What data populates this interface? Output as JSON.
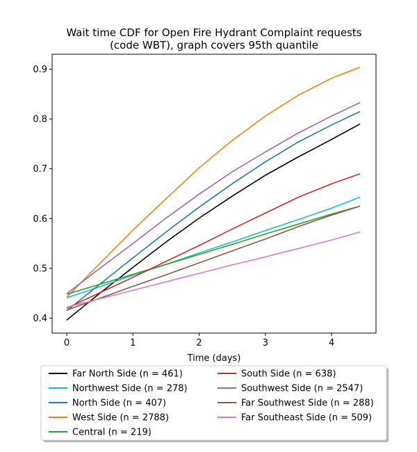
{
  "chart_data": {
    "type": "line",
    "title_line1": "Wait time CDF for Open Fire Hydrant Complaint  requests",
    "title_line2": "(code WBT), graph covers 95th quantile",
    "xlabel": "Time (days)",
    "ylabel": "",
    "xlim": [
      -0.22,
      4.67
    ],
    "ylim": [
      0.37,
      0.93
    ],
    "xticks": [
      0,
      1,
      2,
      3,
      4
    ],
    "yticks": [
      0.4,
      0.5,
      0.6,
      0.7,
      0.8,
      0.9
    ],
    "grid": false,
    "legend_placement": "below plot, two columns",
    "series": [
      {
        "name": "Far North Side (n = 461)",
        "color": "#000000",
        "x": [
          0,
          0.5,
          1,
          1.5,
          2,
          2.5,
          3,
          3.5,
          4,
          4.43
        ],
        "y": [
          0.396,
          0.45,
          0.502,
          0.553,
          0.601,
          0.645,
          0.687,
          0.724,
          0.759,
          0.79
        ]
      },
      {
        "name": "Northwest Side (n = 278)",
        "color": "#17becf",
        "x": [
          0,
          0.5,
          1,
          1.5,
          2,
          2.5,
          3,
          3.5,
          4,
          4.43
        ],
        "y": [
          0.441,
          0.463,
          0.486,
          0.508,
          0.531,
          0.553,
          0.576,
          0.598,
          0.621,
          0.643
        ]
      },
      {
        "name": "North Side (n = 407)",
        "color": "#1f77b4",
        "x": [
          0,
          0.5,
          1,
          1.5,
          2,
          2.5,
          3,
          3.5,
          4,
          4.43
        ],
        "y": [
          0.415,
          0.468,
          0.521,
          0.573,
          0.623,
          0.67,
          0.714,
          0.754,
          0.788,
          0.815
        ]
      },
      {
        "name": "West Side (n = 2788)",
        "color": "#ff7f0e",
        "x": [
          0,
          0.5,
          1,
          1.5,
          2,
          2.5,
          3,
          3.5,
          4,
          4.43
        ],
        "y": [
          0.442,
          0.51,
          0.577,
          0.64,
          0.702,
          0.757,
          0.806,
          0.848,
          0.882,
          0.904
        ]
      },
      {
        "name": "Central (n = 219)",
        "color": "#2ca02c",
        "x": [
          0,
          0.5,
          1,
          1.5,
          2,
          2.5,
          3,
          3.5,
          4,
          4.43
        ],
        "y": [
          0.448,
          0.468,
          0.488,
          0.508,
          0.528,
          0.548,
          0.569,
          0.589,
          0.609,
          0.625
        ]
      },
      {
        "name": "South Side (n = 638)",
        "color": "#d62728",
        "x": [
          0,
          0.5,
          1,
          1.5,
          2,
          2.5,
          3,
          3.5,
          4,
          4.43
        ],
        "y": [
          0.42,
          0.451,
          0.482,
          0.514,
          0.546,
          0.579,
          0.611,
          0.643,
          0.67,
          0.69
        ]
      },
      {
        "name": "Southwest Side (n = 2547)",
        "color": "#9467bd",
        "x": [
          0,
          0.5,
          1,
          1.5,
          2,
          2.5,
          3,
          3.5,
          4,
          4.43
        ],
        "y": [
          0.449,
          0.5,
          0.55,
          0.601,
          0.649,
          0.694,
          0.734,
          0.772,
          0.806,
          0.833
        ]
      },
      {
        "name": "Far Southwest Side (n = 288)",
        "color": "#8c564b",
        "x": [
          0,
          0.5,
          1,
          1.5,
          2,
          2.5,
          3,
          3.5,
          4,
          4.43
        ],
        "y": [
          0.416,
          0.44,
          0.464,
          0.487,
          0.511,
          0.535,
          0.559,
          0.584,
          0.607,
          0.625
        ]
      },
      {
        "name": "Far Southeast Side (n = 509)",
        "color": "#e377c2",
        "x": [
          0,
          0.5,
          1,
          1.5,
          2,
          2.5,
          3,
          3.5,
          4,
          4.43
        ],
        "y": [
          0.422,
          0.439,
          0.456,
          0.473,
          0.49,
          0.507,
          0.523,
          0.54,
          0.557,
          0.573
        ]
      }
    ]
  }
}
